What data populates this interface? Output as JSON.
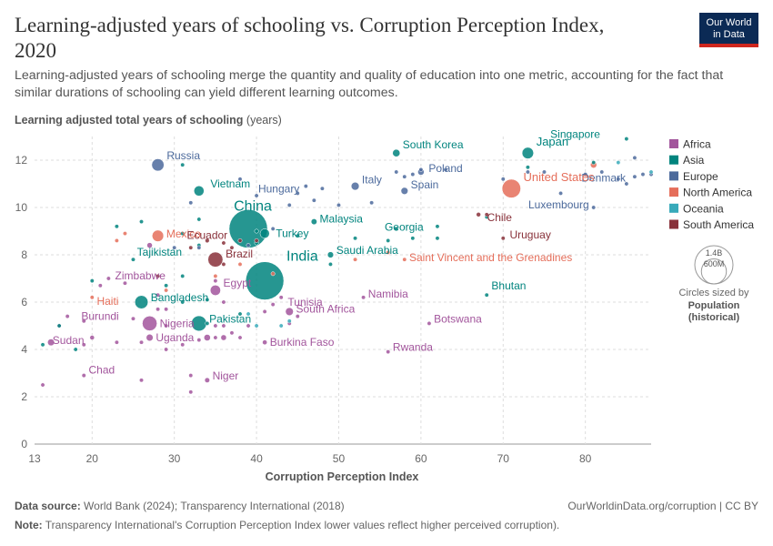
{
  "header": {
    "title": "Learning-adjusted years of schooling vs. Corruption Perception Index, 2020",
    "subtitle": "Learning-adjusted years of schooling merge the quantity and quality of education into one metric, accounting for the fact that similar durations of schooling can yield different learning outcomes.",
    "logo_line1": "Our World",
    "logo_line2": "in Data"
  },
  "footer": {
    "source_label": "Data source:",
    "source_text": "World Bank (2024); Transparency International (2018)",
    "url_text": "OurWorldinData.org/corruption | CC BY",
    "note_label": "Note:",
    "note_text": "Transparency International's Corruption Perception Index lower values reflect higher perceived corruption)."
  },
  "colors": {
    "Africa": "#a2559c",
    "Asia": "#00847e",
    "Europe": "#4c6a9c",
    "North America": "#e56e5a",
    "Oceania": "#38aaba",
    "South America": "#883039"
  },
  "chart_data": {
    "type": "scatter",
    "title": "Learning-adjusted years of schooling vs. Corruption Perception Index, 2020",
    "ylabel_bold": "Learning adjusted total years of schooling",
    "ylabel_unit": "(years)",
    "xlabel": "Corruption Perception Index",
    "xlim": [
      13,
      88
    ],
    "ylim": [
      0,
      13
    ],
    "xticks": [
      13,
      20,
      30,
      40,
      50,
      60,
      70,
      80
    ],
    "yticks": [
      0,
      2,
      4,
      6,
      8,
      10,
      12
    ],
    "size_legend": {
      "title": "Circles sized by",
      "subtitle_line1": "Population",
      "subtitle_line2": "(historical)",
      "big_label": "1.4B",
      "small_label": "600M",
      "big_value": 1400000000,
      "small_value": 600000000
    },
    "legend": [
      "Africa",
      "Asia",
      "Europe",
      "North America",
      "Oceania",
      "South America"
    ],
    "labeled": [
      {
        "name": "Russia",
        "region": "Europe",
        "x": 28,
        "y": 11.8,
        "pop": 144000000
      },
      {
        "name": "Vietnam",
        "region": "Asia",
        "x": 33,
        "y": 10.7,
        "pop": 97000000
      },
      {
        "name": "South Korea",
        "region": "Asia",
        "x": 57,
        "y": 12.3,
        "pop": 52000000
      },
      {
        "name": "Japan",
        "region": "Asia",
        "x": 73,
        "y": 12.3,
        "pop": 126000000
      },
      {
        "name": "Singapore",
        "region": "Asia",
        "x": 85,
        "y": 12.9,
        "pop": 5700000
      },
      {
        "name": "Poland",
        "region": "Europe",
        "x": 60,
        "y": 11.5,
        "pop": 38000000
      },
      {
        "name": "Denmark",
        "region": "Europe",
        "x": 88,
        "y": 11.4,
        "pop": 5800000
      },
      {
        "name": "United States",
        "region": "North America",
        "x": 71,
        "y": 10.8,
        "pop": 331000000
      },
      {
        "name": "Hungary",
        "region": "Europe",
        "x": 46,
        "y": 10.9,
        "pop": 9700000
      },
      {
        "name": "Italy",
        "region": "Europe",
        "x": 52,
        "y": 10.9,
        "pop": 60000000
      },
      {
        "name": "Spain",
        "region": "Europe",
        "x": 58,
        "y": 10.7,
        "pop": 47000000
      },
      {
        "name": "Luxembourg",
        "region": "Europe",
        "x": 81,
        "y": 10.0,
        "pop": 630000
      },
      {
        "name": "China",
        "region": "Asia",
        "x": 39,
        "y": 9.1,
        "pop": 1410000000
      },
      {
        "name": "Mexico",
        "region": "North America",
        "x": 28,
        "y": 8.8,
        "pop": 126000000
      },
      {
        "name": "Ecuador",
        "region": "South America",
        "x": 34,
        "y": 8.6,
        "pop": 17600000
      },
      {
        "name": "Turkey",
        "region": "Asia",
        "x": 41,
        "y": 8.9,
        "pop": 84000000
      },
      {
        "name": "Malaysia",
        "region": "Asia",
        "x": 47,
        "y": 9.4,
        "pop": 32000000
      },
      {
        "name": "Chile",
        "region": "South America",
        "x": 67,
        "y": 9.7,
        "pop": 19000000
      },
      {
        "name": "Georgia",
        "region": "Asia",
        "x": 57,
        "y": 9.1,
        "pop": 3700000
      },
      {
        "name": "Uruguay",
        "region": "South America",
        "x": 70,
        "y": 8.7,
        "pop": 3500000
      },
      {
        "name": "Brazil",
        "region": "South America",
        "x": 35,
        "y": 7.8,
        "pop": 213000000
      },
      {
        "name": "Saudi Arabia",
        "region": "Asia",
        "x": 49,
        "y": 8.0,
        "pop": 35000000
      },
      {
        "name": "Saint Vincent and the Grenadines",
        "region": "North America",
        "x": 58,
        "y": 7.8,
        "pop": 110000
      },
      {
        "name": "Tajikistan",
        "region": "Asia",
        "x": 25,
        "y": 7.8,
        "pop": 9500000
      },
      {
        "name": "Zimbabwe",
        "region": "Africa",
        "x": 22,
        "y": 7.0,
        "pop": 15000000
      },
      {
        "name": "India",
        "region": "Asia",
        "x": 41,
        "y": 6.9,
        "pop": 1390000000
      },
      {
        "name": "Haiti",
        "region": "North America",
        "x": 20,
        "y": 6.2,
        "pop": 11400000
      },
      {
        "name": "Egypt",
        "region": "Africa",
        "x": 35,
        "y": 6.5,
        "pop": 102000000
      },
      {
        "name": "Bangladesh",
        "region": "Asia",
        "x": 26,
        "y": 6.0,
        "pop": 167000000
      },
      {
        "name": "Tunisia",
        "region": "Africa",
        "x": 43,
        "y": 6.2,
        "pop": 11800000
      },
      {
        "name": "Bhutan",
        "region": "Asia",
        "x": 68,
        "y": 6.3,
        "pop": 770000
      },
      {
        "name": "Namibia",
        "region": "Africa",
        "x": 53,
        "y": 6.2,
        "pop": 2500000
      },
      {
        "name": "Burundi",
        "region": "Africa",
        "x": 17,
        "y": 5.4,
        "pop": 12000000
      },
      {
        "name": "Nigeria",
        "region": "Africa",
        "x": 27,
        "y": 5.1,
        "pop": 208000000
      },
      {
        "name": "Pakistan",
        "region": "Asia",
        "x": 33,
        "y": 5.1,
        "pop": 220000000
      },
      {
        "name": "South Africa",
        "region": "Africa",
        "x": 44,
        "y": 5.6,
        "pop": 59000000
      },
      {
        "name": "Botswana",
        "region": "Africa",
        "x": 61,
        "y": 5.1,
        "pop": 2400000
      },
      {
        "name": "Sudan",
        "region": "Africa",
        "x": 15,
        "y": 4.3,
        "pop": 44000000
      },
      {
        "name": "Uganda",
        "region": "Africa",
        "x": 27,
        "y": 4.5,
        "pop": 45000000
      },
      {
        "name": "Burkina Faso",
        "region": "Africa",
        "x": 41,
        "y": 4.3,
        "pop": 21000000
      },
      {
        "name": "Rwanda",
        "region": "Africa",
        "x": 56,
        "y": 3.9,
        "pop": 13000000
      },
      {
        "name": "Chad",
        "region": "Africa",
        "x": 19,
        "y": 2.9,
        "pop": 16000000
      },
      {
        "name": "Niger",
        "region": "Africa",
        "x": 34,
        "y": 2.7,
        "pop": 24000000
      }
    ],
    "others": [
      {
        "region": "Africa",
        "x": 14,
        "y": 2.5,
        "pop": 1500000
      },
      {
        "region": "Africa",
        "x": 16,
        "y": 5.0,
        "pop": 8000000
      },
      {
        "region": "Asia",
        "x": 14,
        "y": 4.2,
        "pop": 3000000
      },
      {
        "region": "Asia",
        "x": 16,
        "y": 5.0,
        "pop": 6000000
      },
      {
        "region": "Africa",
        "x": 19,
        "y": 5.2,
        "pop": 4000000
      },
      {
        "region": "Asia",
        "x": 18,
        "y": 4.0,
        "pop": 9000000
      },
      {
        "region": "Africa",
        "x": 20,
        "y": 4.5,
        "pop": 20000000
      },
      {
        "region": "Africa",
        "x": 19,
        "y": 4.2,
        "pop": 6000000
      },
      {
        "region": "Africa",
        "x": 23,
        "y": 4.3,
        "pop": 5000000
      },
      {
        "region": "Africa",
        "x": 26,
        "y": 4.3,
        "pop": 8000000
      },
      {
        "region": "Africa",
        "x": 26,
        "y": 2.7,
        "pop": 3000000
      },
      {
        "region": "Africa",
        "x": 25,
        "y": 5.3,
        "pop": 4000000
      },
      {
        "region": "Africa",
        "x": 24,
        "y": 6.8,
        "pop": 3000000
      },
      {
        "region": "Africa",
        "x": 21,
        "y": 6.7,
        "pop": 3000000
      },
      {
        "region": "Asia",
        "x": 20,
        "y": 6.9,
        "pop": 3000000
      },
      {
        "region": "Africa",
        "x": 27,
        "y": 8.4,
        "pop": 28000000
      },
      {
        "region": "Africa",
        "x": 28,
        "y": 6.3,
        "pop": 5000000
      },
      {
        "region": "Africa",
        "x": 28,
        "y": 5.7,
        "pop": 5000000
      },
      {
        "region": "Africa",
        "x": 29,
        "y": 5.7,
        "pop": 4000000
      },
      {
        "region": "Africa",
        "x": 29,
        "y": 5.0,
        "pop": 4000000
      },
      {
        "region": "Africa",
        "x": 29,
        "y": 4.0,
        "pop": 5000000
      },
      {
        "region": "Africa",
        "x": 31,
        "y": 4.2,
        "pop": 4000000
      },
      {
        "region": "Africa",
        "x": 32,
        "y": 2.9,
        "pop": 5000000
      },
      {
        "region": "Africa",
        "x": 32,
        "y": 2.2,
        "pop": 3000000
      },
      {
        "region": "Africa",
        "x": 33,
        "y": 4.4,
        "pop": 5000000
      },
      {
        "region": "Africa",
        "x": 34,
        "y": 4.5,
        "pop": 40000000
      },
      {
        "region": "Africa",
        "x": 35,
        "y": 5.0,
        "pop": 5000000
      },
      {
        "region": "Africa",
        "x": 35,
        "y": 4.5,
        "pop": 10000000
      },
      {
        "region": "Africa",
        "x": 36,
        "y": 4.5,
        "pop": 30000000
      },
      {
        "region": "Africa",
        "x": 36,
        "y": 5.0,
        "pop": 5000000
      },
      {
        "region": "Africa",
        "x": 37,
        "y": 4.7,
        "pop": 5000000
      },
      {
        "region": "Africa",
        "x": 38,
        "y": 4.5,
        "pop": 3000000
      },
      {
        "region": "Africa",
        "x": 39,
        "y": 5.0,
        "pop": 7000000
      },
      {
        "region": "Africa",
        "x": 36,
        "y": 6.0,
        "pop": 5000000
      },
      {
        "region": "Africa",
        "x": 35,
        "y": 6.9,
        "pop": 3000000
      },
      {
        "region": "Africa",
        "x": 44,
        "y": 5.1,
        "pop": 3000000
      },
      {
        "region": "Africa",
        "x": 45,
        "y": 5.4,
        "pop": 3000000
      },
      {
        "region": "Africa",
        "x": 41,
        "y": 5.6,
        "pop": 3000000
      },
      {
        "region": "Africa",
        "x": 42,
        "y": 5.9,
        "pop": 3000000
      },
      {
        "region": "Asia",
        "x": 29,
        "y": 6.7,
        "pop": 4000000
      },
      {
        "region": "Asia",
        "x": 31,
        "y": 7.1,
        "pop": 4000000
      },
      {
        "region": "Asia",
        "x": 31,
        "y": 6.0,
        "pop": 3000000
      },
      {
        "region": "Asia",
        "x": 31,
        "y": 8.9,
        "pop": 3000000
      },
      {
        "region": "Asia",
        "x": 33,
        "y": 8.4,
        "pop": 3000000
      },
      {
        "region": "Asia",
        "x": 33,
        "y": 9.5,
        "pop": 3000000
      },
      {
        "region": "Asia",
        "x": 26,
        "y": 9.4,
        "pop": 3000000
      },
      {
        "region": "Asia",
        "x": 23,
        "y": 9.2,
        "pop": 4000000
      },
      {
        "region": "Asia",
        "x": 31,
        "y": 11.8,
        "pop": 3000000
      },
      {
        "region": "Asia",
        "x": 34,
        "y": 5.1,
        "pop": 3000000
      },
      {
        "region": "Asia",
        "x": 34,
        "y": 6.1,
        "pop": 3000000
      },
      {
        "region": "Asia",
        "x": 38,
        "y": 5.5,
        "pop": 3000000
      },
      {
        "region": "Oceania",
        "x": 39,
        "y": 5.5,
        "pop": 3000000
      },
      {
        "region": "Oceania",
        "x": 43,
        "y": 5.0,
        "pop": 3000000
      },
      {
        "region": "Asia",
        "x": 40,
        "y": 8.5,
        "pop": 4000000
      },
      {
        "region": "Asia",
        "x": 40,
        "y": 9.0,
        "pop": 4000000
      },
      {
        "region": "Asia",
        "x": 45,
        "y": 8.8,
        "pop": 3000000
      },
      {
        "region": "Asia",
        "x": 49,
        "y": 7.6,
        "pop": 3000000
      },
      {
        "region": "Asia",
        "x": 52,
        "y": 8.7,
        "pop": 3000000
      },
      {
        "region": "Asia",
        "x": 56,
        "y": 8.6,
        "pop": 3000000
      },
      {
        "region": "Asia",
        "x": 59,
        "y": 8.7,
        "pop": 3000000
      },
      {
        "region": "Asia",
        "x": 62,
        "y": 9.2,
        "pop": 4000000
      },
      {
        "region": "Asia",
        "x": 62,
        "y": 8.7,
        "pop": 3000000
      },
      {
        "region": "Asia",
        "x": 68,
        "y": 9.6,
        "pop": 3000000
      },
      {
        "region": "Asia",
        "x": 73,
        "y": 11.7,
        "pop": 4000000
      },
      {
        "region": "Asia",
        "x": 81,
        "y": 11.9,
        "pop": 3000000
      },
      {
        "region": "Europe",
        "x": 30,
        "y": 8.3,
        "pop": 3000000
      },
      {
        "region": "Europe",
        "x": 32,
        "y": 10.2,
        "pop": 9000000
      },
      {
        "region": "Europe",
        "x": 33,
        "y": 8.3,
        "pop": 3000000
      },
      {
        "region": "Europe",
        "x": 38,
        "y": 11.2,
        "pop": 3000000
      },
      {
        "region": "Europe",
        "x": 39,
        "y": 8.4,
        "pop": 4000000
      },
      {
        "region": "Europe",
        "x": 40,
        "y": 10.5,
        "pop": 3000000
      },
      {
        "region": "Europe",
        "x": 42,
        "y": 9.1,
        "pop": 3000000
      },
      {
        "region": "Europe",
        "x": 44,
        "y": 10.1,
        "pop": 3000000
      },
      {
        "region": "Europe",
        "x": 45,
        "y": 10.6,
        "pop": 3000000
      },
      {
        "region": "Europe",
        "x": 47,
        "y": 10.3,
        "pop": 3000000
      },
      {
        "region": "Europe",
        "x": 48,
        "y": 10.8,
        "pop": 3000000
      },
      {
        "region": "Europe",
        "x": 50,
        "y": 10.1,
        "pop": 3000000
      },
      {
        "region": "Europe",
        "x": 54,
        "y": 10.2,
        "pop": 3000000
      },
      {
        "region": "Europe",
        "x": 57,
        "y": 11.5,
        "pop": 3000000
      },
      {
        "region": "Europe",
        "x": 58,
        "y": 11.3,
        "pop": 10000000
      },
      {
        "region": "Europe",
        "x": 59,
        "y": 11.4,
        "pop": 5000000
      },
      {
        "region": "Europe",
        "x": 60,
        "y": 11.6,
        "pop": 3000000
      },
      {
        "region": "Europe",
        "x": 63,
        "y": 11.6,
        "pop": 3000000
      },
      {
        "region": "Europe",
        "x": 70,
        "y": 11.2,
        "pop": 3000000
      },
      {
        "region": "Europe",
        "x": 73,
        "y": 11.5,
        "pop": 4000000
      },
      {
        "region": "Europe",
        "x": 75,
        "y": 11.5,
        "pop": 3000000
      },
      {
        "region": "Europe",
        "x": 77,
        "y": 10.6,
        "pop": 5000000
      },
      {
        "region": "Europe",
        "x": 80,
        "y": 11.4,
        "pop": 3000000
      },
      {
        "region": "Europe",
        "x": 82,
        "y": 11.5,
        "pop": 3000000
      },
      {
        "region": "Europe",
        "x": 84,
        "y": 11.2,
        "pop": 3000000
      },
      {
        "region": "Europe",
        "x": 85,
        "y": 11.0,
        "pop": 3000000
      },
      {
        "region": "Europe",
        "x": 86,
        "y": 11.3,
        "pop": 3000000
      },
      {
        "region": "Europe",
        "x": 87,
        "y": 11.4,
        "pop": 3000000
      },
      {
        "region": "Europe",
        "x": 86,
        "y": 12.1,
        "pop": 3000000
      },
      {
        "region": "North America",
        "x": 24,
        "y": 8.9,
        "pop": 3000000
      },
      {
        "region": "North America",
        "x": 23,
        "y": 8.6,
        "pop": 3000000
      },
      {
        "region": "North America",
        "x": 29,
        "y": 6.5,
        "pop": 3000000
      },
      {
        "region": "North America",
        "x": 35,
        "y": 7.1,
        "pop": 3000000
      },
      {
        "region": "North America",
        "x": 38,
        "y": 7.6,
        "pop": 3000000
      },
      {
        "region": "North America",
        "x": 42,
        "y": 7.2,
        "pop": 3000000
      },
      {
        "region": "North America",
        "x": 52,
        "y": 7.8,
        "pop": 3000000
      },
      {
        "region": "North America",
        "x": 56,
        "y": 8.1,
        "pop": 3000000
      },
      {
        "region": "North America",
        "x": 81,
        "y": 11.8,
        "pop": 38000000
      },
      {
        "region": "Oceania",
        "x": 40,
        "y": 5.0,
        "pop": 3000000
      },
      {
        "region": "Oceania",
        "x": 44,
        "y": 5.2,
        "pop": 3000000
      },
      {
        "region": "Oceania",
        "x": 84,
        "y": 11.9,
        "pop": 3000000
      },
      {
        "region": "Oceania",
        "x": 88,
        "y": 11.5,
        "pop": 3000000
      },
      {
        "region": "South America",
        "x": 28,
        "y": 7.1,
        "pop": 3000000
      },
      {
        "region": "South America",
        "x": 36,
        "y": 8.5,
        "pop": 11000000
      },
      {
        "region": "South America",
        "x": 37,
        "y": 8.3,
        "pop": 3000000
      },
      {
        "region": "South America",
        "x": 38,
        "y": 8.6,
        "pop": 5000000
      },
      {
        "region": "South America",
        "x": 36,
        "y": 7.6,
        "pop": 5000000
      },
      {
        "region": "South America",
        "x": 40,
        "y": 8.6,
        "pop": 3000000
      },
      {
        "region": "South America",
        "x": 68,
        "y": 9.7,
        "pop": 3000000
      },
      {
        "region": "South America",
        "x": 32,
        "y": 8.3,
        "pop": 4000000
      }
    ]
  }
}
